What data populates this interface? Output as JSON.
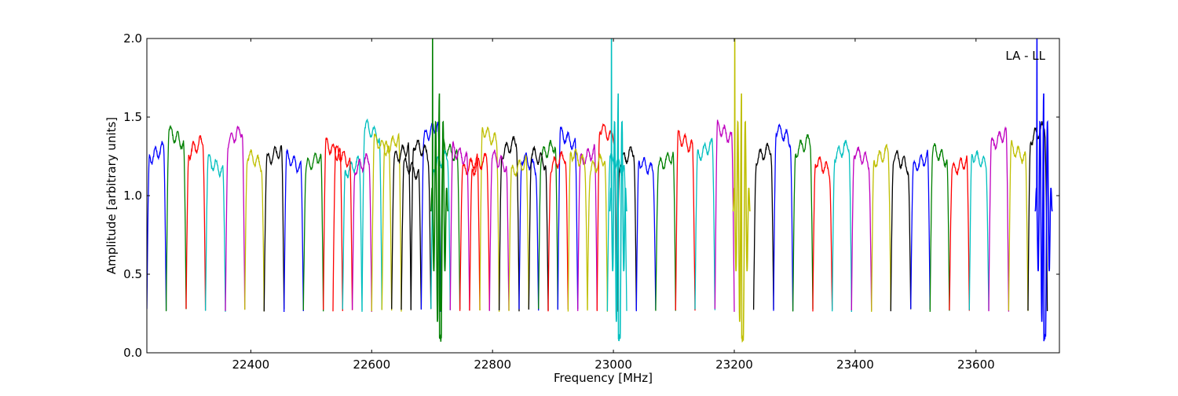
{
  "chart_data": {
    "type": "line",
    "title": "",
    "annotation": "LA - LL",
    "xlabel": "Frequency [MHz]",
    "ylabel": "Amplitude [arbitrary units]",
    "xlim": [
      22228,
      23738
    ],
    "ylim": [
      0.0,
      2.0
    ],
    "xticks": [
      22400,
      22600,
      22800,
      23000,
      23200,
      23400,
      23600
    ],
    "xtick_labels": [
      "22400",
      "22600",
      "22800",
      "23000",
      "23200",
      "23400",
      "23600"
    ],
    "yticks": [
      0.0,
      0.5,
      1.0,
      1.5,
      2.0
    ],
    "ytick_labels": [
      "0.0",
      "0.5",
      "1.0",
      "1.5",
      "2.0"
    ],
    "grid": false,
    "color_cycle": [
      "#0000ff",
      "#008000",
      "#ff0000",
      "#00bfbf",
      "#bf00bf",
      "#bfbf00",
      "#000000"
    ],
    "segments_note_fields": [
      "start_MHz",
      "end_MHz",
      "peak_amplitude",
      "color_index"
    ],
    "segments": [
      [
        22228,
        22260,
        1.27,
        0
      ],
      [
        22260,
        22293,
        1.37,
        1
      ],
      [
        22293,
        22325,
        1.31,
        2
      ],
      [
        22325,
        22358,
        1.19,
        3
      ],
      [
        22358,
        22390,
        1.38,
        4
      ],
      [
        22390,
        22422,
        1.23,
        5
      ],
      [
        22422,
        22455,
        1.26,
        6
      ],
      [
        22455,
        22487,
        1.21,
        0
      ],
      [
        22487,
        22520,
        1.22,
        1
      ],
      [
        22520,
        22552,
        1.29,
        2
      ],
      [
        22552,
        22584,
        1.18,
        3
      ],
      [
        22584,
        22617,
        1.41,
        3
      ],
      [
        22617,
        22649,
        1.33,
        5
      ],
      [
        22649,
        22682,
        1.17,
        6
      ],
      [
        22682,
        22714,
        1.41,
        0
      ],
      [
        22714,
        22746,
        1.28,
        1
      ],
      [
        22746,
        22779,
        1.19,
        2
      ],
      [
        22779,
        22811,
        1.38,
        5
      ],
      [
        22811,
        22844,
        1.31,
        6
      ],
      [
        22844,
        22876,
        1.21,
        0
      ],
      [
        22876,
        22908,
        1.29,
        1
      ],
      [
        22908,
        22941,
        1.36,
        0
      ],
      [
        22941,
        22973,
        1.25,
        4
      ],
      [
        22973,
        23006,
        1.4,
        2
      ],
      [
        23006,
        23038,
        1.25,
        6
      ],
      [
        23038,
        23070,
        1.19,
        0
      ],
      [
        23070,
        23103,
        1.22,
        1
      ],
      [
        23103,
        23135,
        1.34,
        2
      ],
      [
        23135,
        23168,
        1.29,
        3
      ],
      [
        23168,
        23200,
        1.4,
        4
      ],
      [
        23232,
        23265,
        1.27,
        6
      ],
      [
        23265,
        23297,
        1.39,
        0
      ],
      [
        23297,
        23330,
        1.32,
        1
      ],
      [
        23330,
        23362,
        1.19,
        2
      ],
      [
        23362,
        23394,
        1.29,
        3
      ],
      [
        23394,
        23427,
        1.25,
        4
      ],
      [
        23427,
        23459,
        1.25,
        5
      ],
      [
        23459,
        23492,
        1.22,
        6
      ],
      [
        23492,
        23524,
        1.21,
        0
      ],
      [
        23524,
        23556,
        1.26,
        1
      ],
      [
        23556,
        23589,
        1.19,
        2
      ],
      [
        23589,
        23621,
        1.23,
        3
      ],
      [
        23621,
        23654,
        1.36,
        4
      ],
      [
        23654,
        23686,
        1.27,
        5
      ],
      [
        23686,
        23718,
        1.4,
        6
      ],
      [
        22536,
        22568,
        1.25,
        2
      ],
      [
        22568,
        22600,
        1.2,
        4
      ],
      [
        22600,
        22633,
        1.32,
        5
      ],
      [
        22633,
        22665,
        1.27,
        6
      ],
      [
        22665,
        22698,
        1.3,
        6
      ],
      [
        22698,
        22730,
        1.22,
        3
      ],
      [
        22730,
        22762,
        1.26,
        4
      ],
      [
        22762,
        22795,
        1.2,
        2
      ],
      [
        22795,
        22827,
        1.22,
        4
      ],
      [
        22827,
        22860,
        1.18,
        5
      ],
      [
        22860,
        22892,
        1.24,
        6
      ],
      [
        22892,
        22925,
        1.22,
        2
      ],
      [
        22925,
        22957,
        1.24,
        5
      ],
      [
        22957,
        22990,
        1.2,
        5
      ],
      [
        22990,
        23022,
        1.2,
        3
      ]
    ],
    "spikes_note_fields": [
      "center_MHz",
      "max_amplitude",
      "min_amplitude",
      "color_index"
    ],
    "spikes": [
      [
        22712,
        2.0,
        0.07,
        1
      ],
      [
        23008,
        2.0,
        0.07,
        3
      ],
      [
        23212,
        2.0,
        0.07,
        5
      ],
      [
        23712,
        2.0,
        0.07,
        0
      ]
    ]
  }
}
